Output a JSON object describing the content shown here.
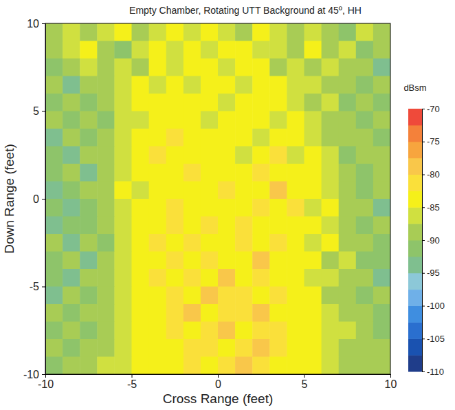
{
  "chart_data": {
    "type": "heatmap",
    "title": "Empty Chamber,  Rotating UTT Background at 45º,  HH",
    "x_label": "Cross Range  (feet)",
    "y_label": "Down Range  (feet)",
    "xlim": [
      -10,
      10
    ],
    "ylim": [
      -10,
      10
    ],
    "xticks": [
      -10,
      -5,
      0,
      5,
      10
    ],
    "yticks": [
      -10,
      -5,
      0,
      5,
      10
    ],
    "x": [
      -9.5,
      -8.5,
      -7.5,
      -6.5,
      -5.5,
      -4.5,
      -3.5,
      -2.5,
      -1.5,
      -0.5,
      0.5,
      1.5,
      2.5,
      3.5,
      4.5,
      5.5,
      6.5,
      7.5,
      8.5,
      9.5
    ],
    "y": [
      9.5,
      8.5,
      7.5,
      6.5,
      5.5,
      4.5,
      3.5,
      2.5,
      1.5,
      0.5,
      -0.5,
      -1.5,
      -2.5,
      -3.5,
      -4.5,
      -5.5,
      -6.5,
      -7.5,
      -8.5,
      -9.5
    ],
    "values": [
      [
        -88,
        -86,
        -90,
        -87,
        -85,
        -88,
        -86,
        -85,
        -87,
        -85,
        -86,
        -88,
        -85,
        -87,
        -90,
        -86,
        -88,
        -91,
        -87,
        -89
      ],
      [
        -90,
        -87,
        -85,
        -88,
        -91,
        -86,
        -85,
        -87,
        -84,
        -86,
        -85,
        -84,
        -87,
        -86,
        -88,
        -85,
        -89,
        -87,
        -92,
        -88
      ],
      [
        -92,
        -89,
        -87,
        -90,
        -86,
        -88,
        -84,
        -86,
        -85,
        -83,
        -86,
        -85,
        -84,
        -88,
        -86,
        -89,
        -87,
        -90,
        -88,
        -93
      ],
      [
        -89,
        -93,
        -90,
        -88,
        -87,
        -85,
        -86,
        -84,
        -86,
        -85,
        -84,
        -86,
        -83,
        -85,
        -87,
        -86,
        -90,
        -88,
        -91,
        -89
      ],
      [
        -91,
        -88,
        -92,
        -89,
        -86,
        -84,
        -85,
        -83,
        -85,
        -84,
        -86,
        -84,
        -85,
        -84,
        -86,
        -88,
        -87,
        -91,
        -89,
        -92
      ],
      [
        -90,
        -92,
        -89,
        -91,
        -87,
        -86,
        -83,
        -85,
        -84,
        -86,
        -83,
        -85,
        -84,
        -86,
        -85,
        -87,
        -89,
        -88,
        -92,
        -90
      ],
      [
        -93,
        -90,
        -91,
        -88,
        -86,
        -84,
        -85,
        -82,
        -85,
        -84,
        -85,
        -83,
        -86,
        -84,
        -85,
        -86,
        -88,
        -90,
        -89,
        -91
      ],
      [
        -91,
        -94,
        -89,
        -90,
        -87,
        -85,
        -81,
        -84,
        -83,
        -85,
        -84,
        -86,
        -84,
        -82,
        -86,
        -85,
        -87,
        -91,
        -90,
        -88
      ],
      [
        -92,
        -90,
        -93,
        -88,
        -86,
        -84,
        -83,
        -85,
        -82,
        -84,
        -83,
        -85,
        -81,
        -84,
        -85,
        -84,
        -86,
        -89,
        -91,
        -90
      ],
      [
        -94,
        -91,
        -90,
        -89,
        -85,
        -86,
        -84,
        -83,
        -84,
        -85,
        -82,
        -84,
        -83,
        -80,
        -84,
        -85,
        -87,
        -88,
        -92,
        -89
      ],
      [
        -92,
        -95,
        -91,
        -88,
        -87,
        -84,
        -85,
        -82,
        -83,
        -84,
        -85,
        -83,
        -82,
        -84,
        -81,
        -86,
        -85,
        -89,
        -90,
        -93
      ],
      [
        -93,
        -91,
        -92,
        -90,
        -86,
        -85,
        -83,
        -81,
        -84,
        -82,
        -84,
        -81,
        -83,
        -85,
        -83,
        -84,
        -87,
        -88,
        -91,
        -90
      ],
      [
        -90,
        -93,
        -89,
        -91,
        -87,
        -84,
        -82,
        -84,
        -81,
        -83,
        -85,
        -82,
        -84,
        -82,
        -85,
        -86,
        -85,
        -90,
        -89,
        -92
      ],
      [
        -92,
        -90,
        -94,
        -88,
        -86,
        -85,
        -83,
        -82,
        -84,
        -81,
        -83,
        -84,
        -80,
        -83,
        -84,
        -85,
        -88,
        -87,
        -92,
        -91
      ],
      [
        -91,
        -93,
        -90,
        -89,
        -87,
        -84,
        -82,
        -83,
        -81,
        -84,
        -78,
        -83,
        -82,
        -84,
        -85,
        -86,
        -87,
        -90,
        -89,
        -93
      ],
      [
        -93,
        -90,
        -92,
        -88,
        -86,
        -85,
        -83,
        -81,
        -83,
        -80,
        -82,
        -81,
        -83,
        -82,
        -84,
        -85,
        -88,
        -89,
        -91,
        -90
      ],
      [
        -90,
        -92,
        -89,
        -90,
        -87,
        -84,
        -84,
        -82,
        -80,
        -83,
        -81,
        -82,
        -80,
        -83,
        -85,
        -84,
        -86,
        -88,
        -90,
        -92
      ],
      [
        -92,
        -89,
        -91,
        -88,
        -86,
        -85,
        -83,
        -81,
        -83,
        -82,
        -80,
        -83,
        -82,
        -81,
        -84,
        -83,
        -87,
        -86,
        -89,
        -91
      ],
      [
        -89,
        -91,
        -88,
        -90,
        -87,
        -84,
        -85,
        -83,
        -82,
        -81,
        -83,
        -81,
        -80,
        -82,
        -84,
        -85,
        -86,
        -88,
        -90,
        -88
      ],
      [
        -91,
        -88,
        -90,
        -87,
        -86,
        -85,
        -83,
        -84,
        -82,
        -83,
        -82,
        -80,
        -82,
        -83,
        -85,
        -84,
        -87,
        -89,
        -88,
        -90
      ]
    ],
    "colorbar_title": "dBsm",
    "zlim": [
      -110,
      -70
    ],
    "zticks": [
      -110,
      -105,
      -100,
      -95,
      -90,
      -85,
      -80,
      -75,
      -70
    ]
  }
}
